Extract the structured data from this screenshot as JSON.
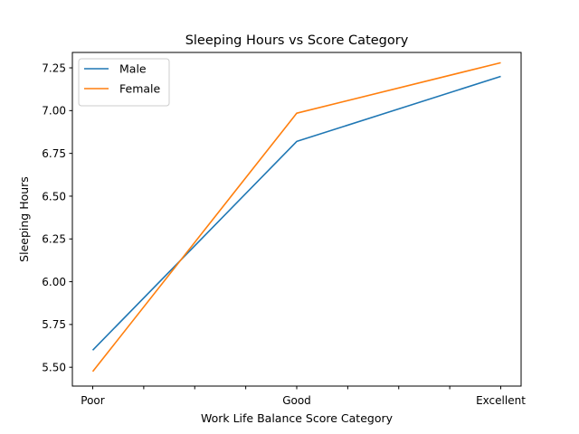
{
  "chart_data": {
    "type": "line",
    "title": "Sleeping Hours vs Score Category",
    "xlabel": "Work Life Balance Score Category",
    "ylabel": "Sleeping Hours",
    "categories": [
      "Poor",
      "Good",
      "Excellent"
    ],
    "yticks": [
      "5.50",
      "5.75",
      "6.00",
      "6.25",
      "6.50",
      "6.75",
      "7.00",
      "7.25"
    ],
    "ylim": [
      5.39,
      7.34
    ],
    "series": [
      {
        "name": "Male",
        "color": "#1f77b4",
        "values": [
          5.6,
          6.82,
          7.2
        ]
      },
      {
        "name": "Female",
        "color": "#ff7f0e",
        "values": [
          5.475,
          6.985,
          7.28
        ]
      }
    ],
    "legend": "top-left",
    "grid": false
  }
}
